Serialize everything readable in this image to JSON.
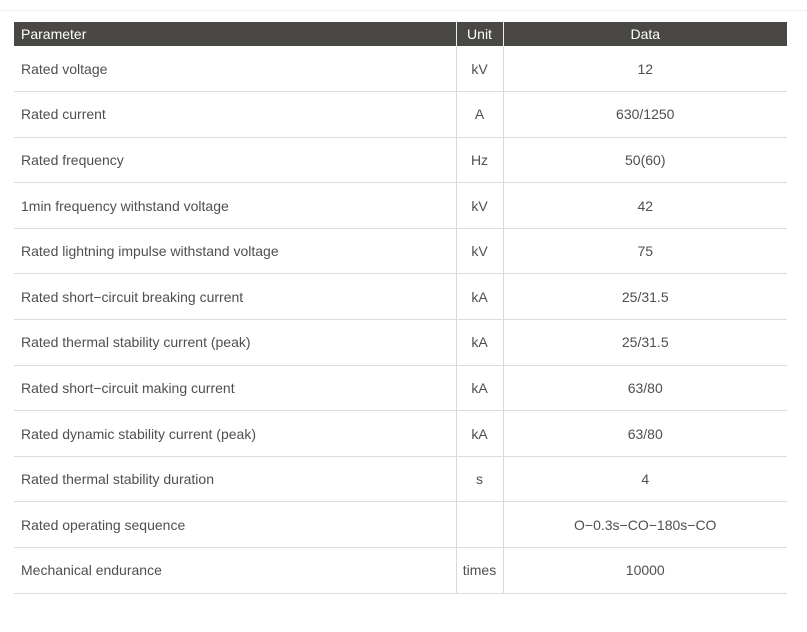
{
  "colors": {
    "header_bg": "#4a4845",
    "header_text": "#ffffff",
    "body_text": "#4f4f4f",
    "row_border": "#dcdcdc",
    "column_border": "#d9d9d9",
    "top_rule": "#f0f0f0"
  },
  "table": {
    "columns": [
      {
        "key": "parameter",
        "label": "Parameter"
      },
      {
        "key": "unit",
        "label": "Unit"
      },
      {
        "key": "data",
        "label": "Data"
      }
    ],
    "rows": [
      {
        "parameter": "Rated voltage",
        "unit": "kV",
        "data": "12"
      },
      {
        "parameter": "Rated current",
        "unit": "A",
        "data": "630/1250"
      },
      {
        "parameter": "Rated frequency",
        "unit": "Hz",
        "data": "50(60)"
      },
      {
        "parameter": "1min frequency withstand voltage",
        "unit": "kV",
        "data": "42"
      },
      {
        "parameter": "Rated lightning impulse withstand voltage",
        "unit": "kV",
        "data": "75"
      },
      {
        "parameter": "Rated short−circuit breaking current",
        "unit": "kA",
        "data": "25/31.5"
      },
      {
        "parameter": "Rated thermal stability current (peak)",
        "unit": "kA",
        "data": "25/31.5"
      },
      {
        "parameter": "Rated short−circuit making current",
        "unit": "kA",
        "data": "63/80"
      },
      {
        "parameter": "Rated dynamic stability current (peak)",
        "unit": "kA",
        "data": "63/80"
      },
      {
        "parameter": "Rated thermal stability duration",
        "unit": "s",
        "data": "4"
      },
      {
        "parameter": "Rated operating sequence",
        "unit": "",
        "data": "O−0.3s−CO−180s−CO"
      },
      {
        "parameter": "Mechanical endurance",
        "unit": "times",
        "data": "10000"
      }
    ]
  }
}
